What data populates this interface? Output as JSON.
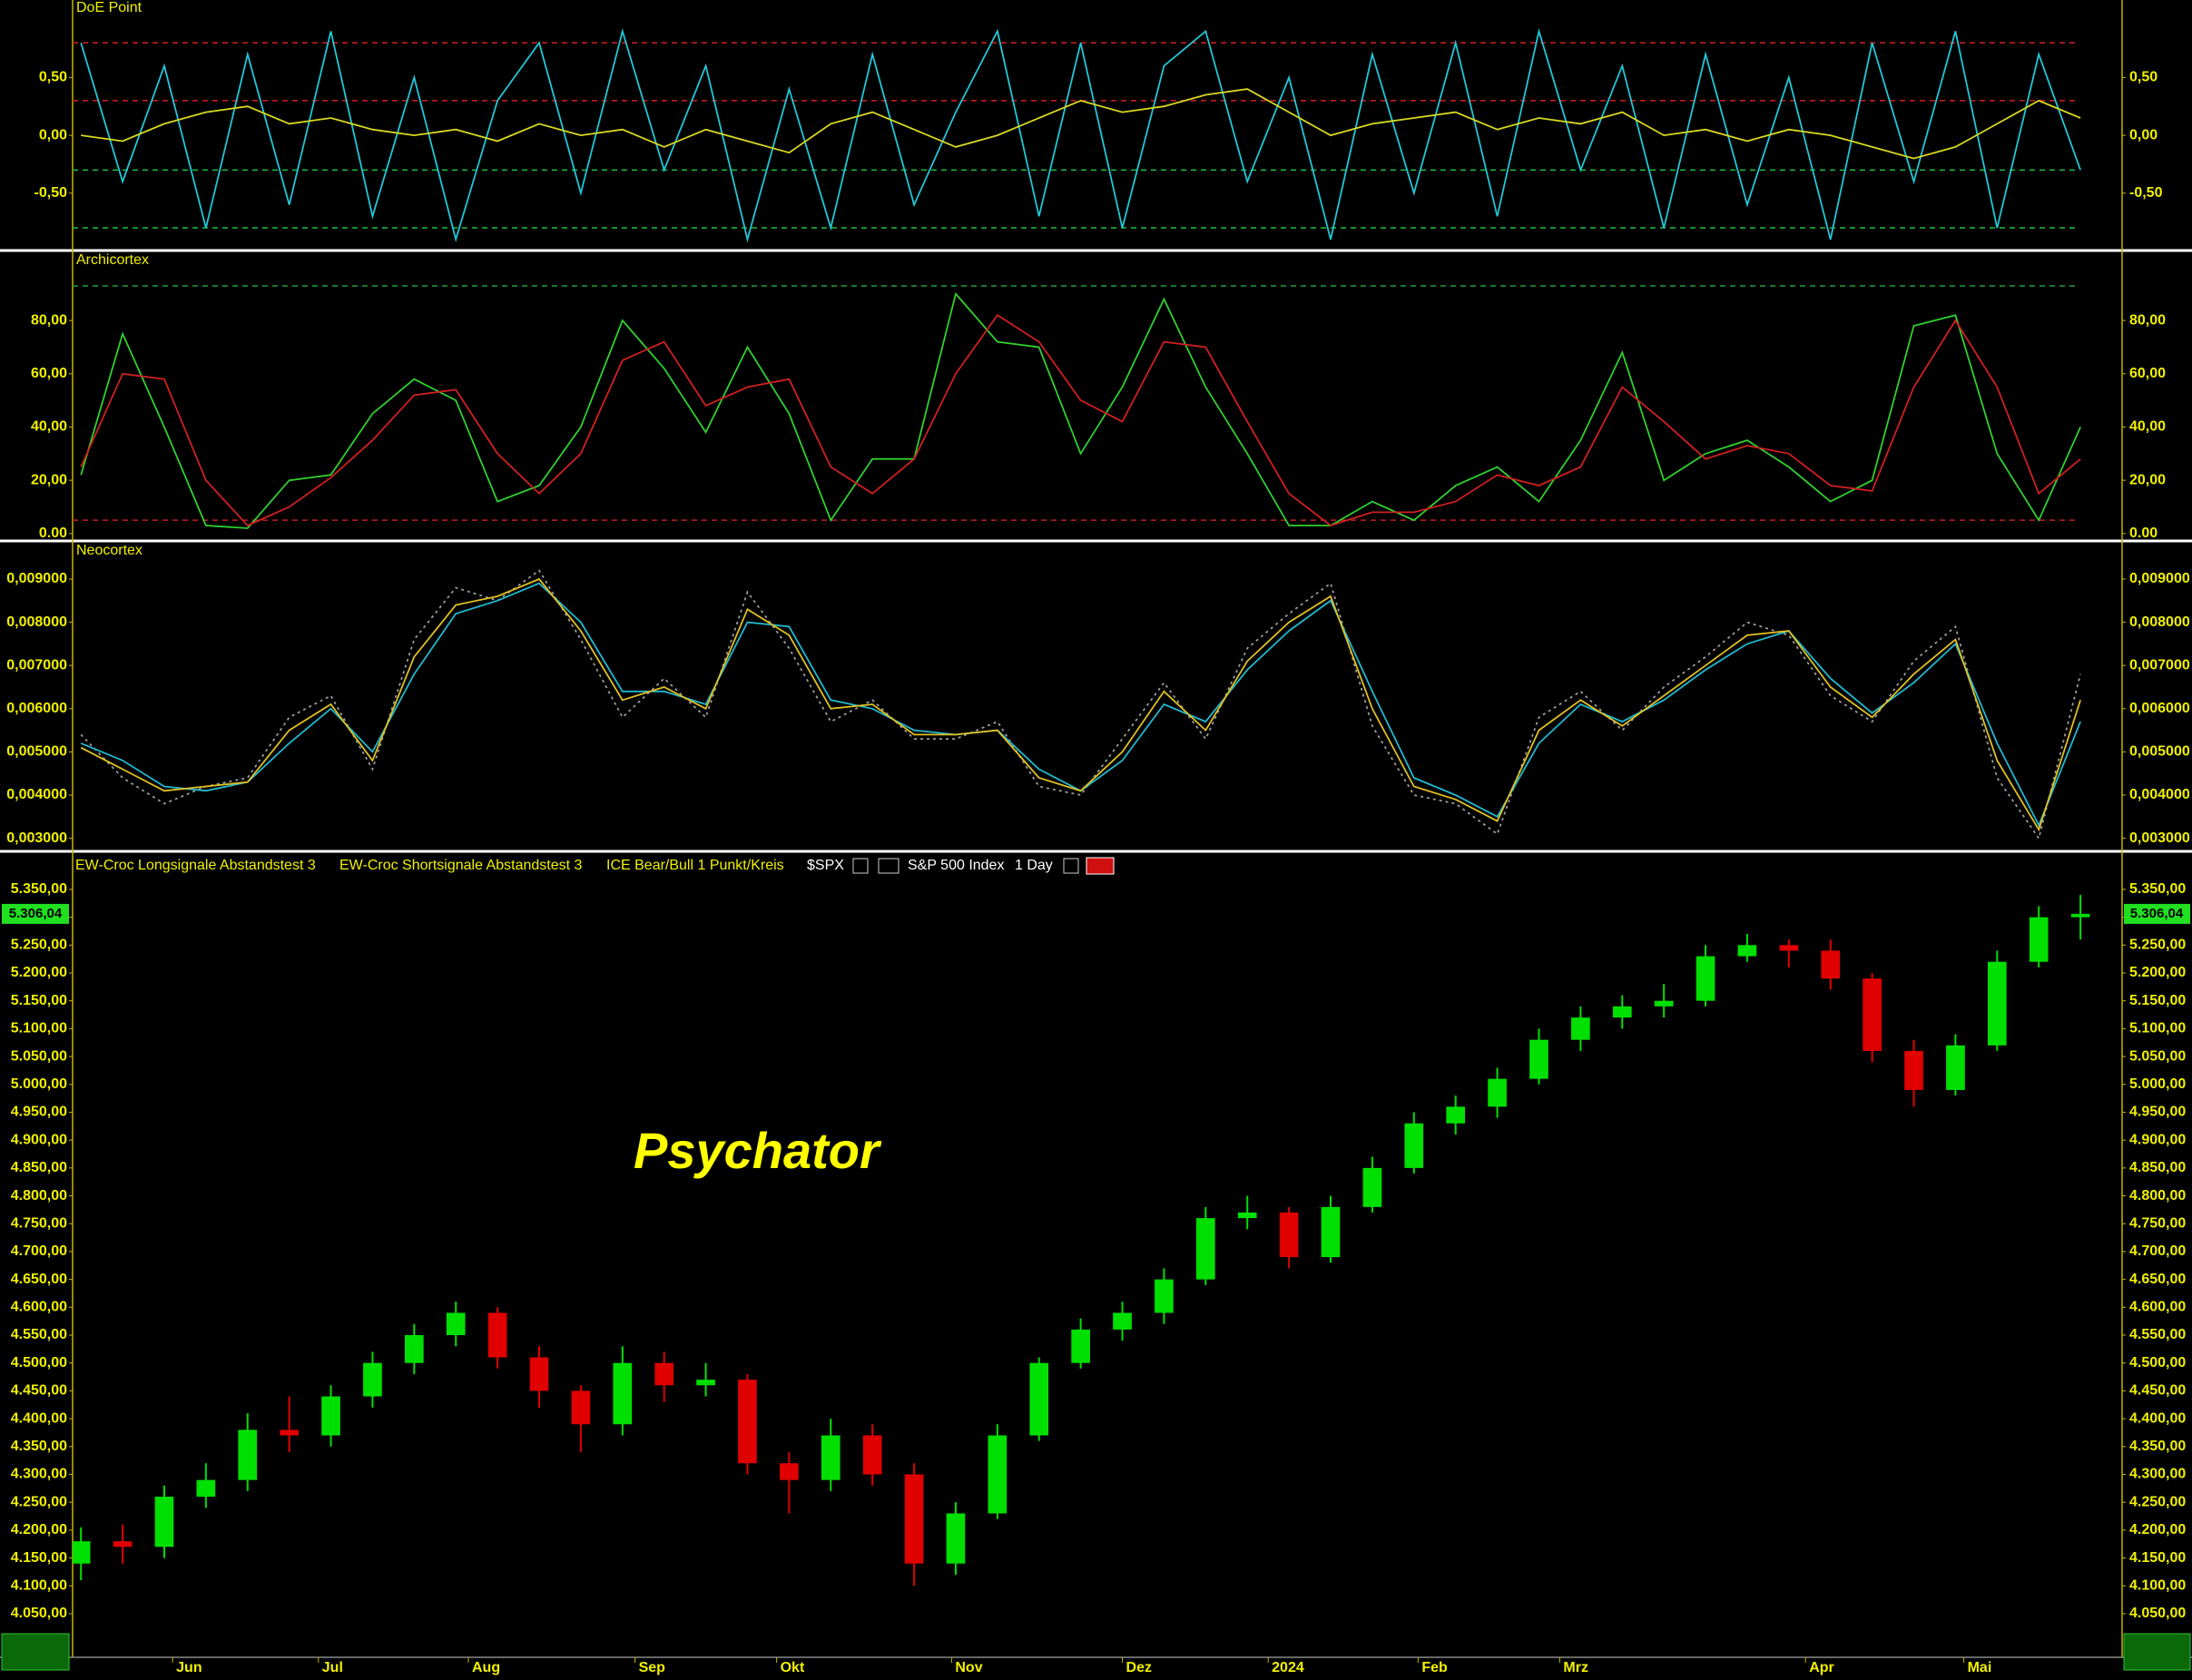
{
  "chart_data": [
    {
      "type": "line",
      "title": "DoE Point",
      "xlim": [
        -0.2,
        49
      ],
      "ylim": [
        -0.98,
        1.17
      ],
      "yticks": [
        {
          "value": 0.5,
          "label": "0,50"
        },
        {
          "value": 0,
          "label": "0,00"
        },
        {
          "value": -0.5,
          "label": "-0,50"
        }
      ],
      "hlines": [
        {
          "value": 0.8,
          "color": "#d02020"
        },
        {
          "value": 0.3,
          "color": "#d02020"
        },
        {
          "value": -0.3,
          "color": "#20c040"
        },
        {
          "value": -0.8,
          "color": "#20c040"
        }
      ],
      "series": [
        {
          "color": "#20c8d8",
          "values": [
            0.8,
            -0.4,
            0.6,
            -0.8,
            0.7,
            -0.6,
            0.9,
            -0.7,
            0.5,
            -0.9,
            0.3,
            0.8,
            -0.5,
            0.9,
            -0.3,
            0.6,
            -0.9,
            0.4,
            -0.8,
            0.7,
            -0.6,
            0.2,
            0.9,
            -0.7,
            0.8,
            -0.8,
            0.6,
            0.9,
            -0.4,
            0.5,
            -0.9,
            0.7,
            -0.5,
            0.8,
            -0.7,
            0.9,
            -0.3,
            0.6,
            -0.8,
            0.7,
            -0.6,
            0.5,
            -0.9,
            0.8,
            -0.4,
            0.9,
            -0.8,
            0.7,
            -0.3
          ]
        },
        {
          "color": "#d8d820",
          "values": [
            0,
            -0.05,
            0.1,
            0.2,
            0.25,
            0.1,
            0.15,
            0.05,
            0,
            0.05,
            -0.05,
            0.1,
            0,
            0.05,
            -0.1,
            0.05,
            -0.05,
            -0.15,
            0.1,
            0.2,
            0.05,
            -0.1,
            0,
            0.15,
            0.3,
            0.2,
            0.25,
            0.35,
            0.4,
            0.2,
            0,
            0.1,
            0.15,
            0.2,
            0.05,
            0.15,
            0.1,
            0.2,
            0,
            0.05,
            -0.05,
            0.05,
            0,
            -0.1,
            -0.2,
            -0.1,
            0.1,
            0.3,
            0.15
          ]
        }
      ]
    },
    {
      "type": "line",
      "title": "Archicortex",
      "xlim": [
        -0.2,
        49
      ],
      "ylim": [
        -2.1,
        105.6
      ],
      "yticks": [
        {
          "value": 80,
          "label": "80,00"
        },
        {
          "value": 60,
          "label": "60,00"
        },
        {
          "value": 40,
          "label": "40,00"
        },
        {
          "value": 20,
          "label": "20,00"
        },
        {
          "value": 0,
          "label": "0.00"
        }
      ],
      "hlines": [
        {
          "value": 93,
          "color": "#20a040"
        },
        {
          "value": 5,
          "color": "#c02020"
        }
      ],
      "series": [
        {
          "color": "#30d030",
          "values": [
            22,
            75,
            40,
            3,
            2,
            20,
            22,
            45,
            58,
            50,
            12,
            18,
            40,
            80,
            62,
            38,
            70,
            45,
            5,
            28,
            28,
            90,
            72,
            70,
            30,
            55,
            88,
            55,
            30,
            3,
            3,
            12,
            5,
            18,
            25,
            12,
            35,
            68,
            20,
            30,
            35,
            25,
            12,
            20,
            78,
            82,
            30,
            5,
            40
          ]
        },
        {
          "color": "#d02020",
          "values": [
            25,
            60,
            58,
            20,
            3,
            10,
            21,
            35,
            52,
            54,
            30,
            15,
            30,
            65,
            72,
            48,
            55,
            58,
            25,
            15,
            28,
            60,
            82,
            72,
            50,
            42,
            72,
            70,
            42,
            15,
            3,
            8,
            8,
            12,
            22,
            18,
            25,
            55,
            42,
            28,
            33,
            30,
            18,
            16,
            55,
            80,
            55,
            15,
            28
          ]
        }
      ]
    },
    {
      "type": "line",
      "title": "Neocortex",
      "xlim": [
        -0.2,
        49
      ],
      "ylim": [
        0.00274,
        0.00984
      ],
      "yticks": [
        {
          "value": 0.009,
          "label": "0,009000"
        },
        {
          "value": 0.008,
          "label": "0,008000"
        },
        {
          "value": 0.007,
          "label": "0,007000"
        },
        {
          "value": 0.006,
          "label": "0,006000"
        },
        {
          "value": 0.005,
          "label": "0,005000"
        },
        {
          "value": 0.004,
          "label": "0,004000"
        },
        {
          "value": 0.003,
          "label": "0,003000"
        }
      ],
      "series": [
        {
          "color": "#9a9a9a",
          "dashed": true,
          "values": [
            0.0054,
            0.0044,
            0.0038,
            0.0042,
            0.0044,
            0.0058,
            0.0063,
            0.0046,
            0.0076,
            0.0088,
            0.0085,
            0.0092,
            0.0076,
            0.0058,
            0.0067,
            0.0058,
            0.0087,
            0.0074,
            0.0057,
            0.0062,
            0.0053,
            0.0053,
            0.0057,
            0.0042,
            0.004,
            0.0053,
            0.0066,
            0.0053,
            0.0074,
            0.0082,
            0.0089,
            0.0056,
            0.004,
            0.0038,
            0.0031,
            0.0058,
            0.0064,
            0.0055,
            0.0065,
            0.0072,
            0.008,
            0.0077,
            0.0063,
            0.0057,
            0.0071,
            0.0079,
            0.0044,
            0.003,
            0.0068
          ]
        },
        {
          "color": "#20b8d0",
          "values": [
            0.0052,
            0.0048,
            0.0042,
            0.0041,
            0.0043,
            0.0052,
            0.006,
            0.005,
            0.0068,
            0.0082,
            0.0085,
            0.0089,
            0.008,
            0.0064,
            0.0064,
            0.0061,
            0.008,
            0.0079,
            0.0062,
            0.006,
            0.0055,
            0.0054,
            0.0055,
            0.0046,
            0.0041,
            0.0048,
            0.0061,
            0.0057,
            0.0069,
            0.0078,
            0.0085,
            0.0064,
            0.0044,
            0.004,
            0.0035,
            0.0052,
            0.0061,
            0.0057,
            0.0062,
            0.0069,
            0.0075,
            0.0078,
            0.0067,
            0.0059,
            0.0066,
            0.0075,
            0.0052,
            0.0033,
            0.0057
          ]
        },
        {
          "color": "#e0c020",
          "values": [
            0.0051,
            0.0046,
            0.0041,
            0.0042,
            0.0043,
            0.0055,
            0.0061,
            0.0048,
            0.0072,
            0.0084,
            0.0086,
            0.009,
            0.0078,
            0.0062,
            0.0065,
            0.006,
            0.0083,
            0.0077,
            0.006,
            0.0061,
            0.0054,
            0.0054,
            0.0055,
            0.0044,
            0.0041,
            0.005,
            0.0064,
            0.0055,
            0.0071,
            0.008,
            0.0086,
            0.006,
            0.0042,
            0.0039,
            0.0034,
            0.0055,
            0.0062,
            0.0056,
            0.0063,
            0.007,
            0.0077,
            0.0078,
            0.0065,
            0.0058,
            0.0068,
            0.0076,
            0.0048,
            0.0032,
            0.0062
          ]
        }
      ]
    },
    {
      "type": "candlestick",
      "legend": [
        "EW-Croc Longsignale Abstandstest 3",
        "EW-Croc Shortsignale Abstandstest 3",
        "ICE Bear/Bull 1 Punkt/Kreis"
      ],
      "symbol": "$SPX",
      "instrument": "S&P 500 Index",
      "interval": "1 Day",
      "annotation": "Psychator",
      "last_value": 5306.04,
      "last_value_label": "5.306,04",
      "up_color": "#00e000",
      "down_color": "#e00000",
      "xlim": [
        -0.2,
        49
      ],
      "ylim": [
        3975,
        5415
      ],
      "xticks": [
        {
          "value": 2.2,
          "label": "Jun"
        },
        {
          "value": 5.7,
          "label": "Jul"
        },
        {
          "value": 9.3,
          "label": "Aug"
        },
        {
          "value": 13.3,
          "label": "Sep"
        },
        {
          "value": 16.7,
          "label": "Okt"
        },
        {
          "value": 20.9,
          "label": "Nov"
        },
        {
          "value": 25,
          "label": "Dez"
        },
        {
          "value": 28.5,
          "label": "2024"
        },
        {
          "value": 32.1,
          "label": "Feb"
        },
        {
          "value": 35.5,
          "label": "Mrz"
        },
        {
          "value": 41.4,
          "label": "Apr"
        },
        {
          "value": 45.2,
          "label": "Mai"
        }
      ],
      "yticks": [
        {
          "value": 5350,
          "label": "5.350,00"
        },
        {
          "value": 5300,
          "label": "5.300,00"
        },
        {
          "value": 5250,
          "label": "5.250,00"
        },
        {
          "value": 5200,
          "label": "5.200,00"
        },
        {
          "value": 5150,
          "label": "5.150,00"
        },
        {
          "value": 5100,
          "label": "5.100,00"
        },
        {
          "value": 5050,
          "label": "5.050,00"
        },
        {
          "value": 5000,
          "label": "5.000,00"
        },
        {
          "value": 4950,
          "label": "4.950,00"
        },
        {
          "value": 4900,
          "label": "4.900,00"
        },
        {
          "value": 4850,
          "label": "4.850,00"
        },
        {
          "value": 4800,
          "label": "4.800,00"
        },
        {
          "value": 4750,
          "label": "4.750,00"
        },
        {
          "value": 4700,
          "label": "4.700,00"
        },
        {
          "value": 4650,
          "label": "4.650,00"
        },
        {
          "value": 4600,
          "label": "4.600,00"
        },
        {
          "value": 4550,
          "label": "4.550,00"
        },
        {
          "value": 4500,
          "label": "4.500,00"
        },
        {
          "value": 4450,
          "label": "4.450,00"
        },
        {
          "value": 4400,
          "label": "4.400,00"
        },
        {
          "value": 4350,
          "label": "4.350,00"
        },
        {
          "value": 4300,
          "label": "4.300,00"
        },
        {
          "value": 4250,
          "label": "4.250,00"
        },
        {
          "value": 4200,
          "label": "4.200,00"
        },
        {
          "value": 4150,
          "label": "4.150,00"
        },
        {
          "value": 4100,
          "label": "4.100,00"
        },
        {
          "value": 4050,
          "label": "4.050,00"
        }
      ],
      "open": [
        4140,
        4180,
        4170,
        4260,
        4290,
        4380,
        4370,
        4440,
        4500,
        4550,
        4590,
        4510,
        4450,
        4390,
        4500,
        4460,
        4470,
        4320,
        4290,
        4370,
        4300,
        4140,
        4230,
        4370,
        4500,
        4560,
        4590,
        4650,
        4760,
        4770,
        4690,
        4780,
        4850,
        4930,
        4960,
        5010,
        5080,
        5120,
        5140,
        5150,
        5230,
        5250,
        5240,
        5190,
        5060,
        4990,
        5070,
        5220,
        5300
      ],
      "high": [
        4205,
        4210,
        4280,
        4320,
        4410,
        4440,
        4460,
        4520,
        4570,
        4610,
        4600,
        4530,
        4460,
        4530,
        4520,
        4500,
        4480,
        4340,
        4400,
        4390,
        4320,
        4250,
        4390,
        4510,
        4580,
        4610,
        4670,
        4780,
        4800,
        4780,
        4800,
        4870,
        4950,
        4980,
        5030,
        5100,
        5140,
        5160,
        5180,
        5250,
        5270,
        5260,
        5260,
        5200,
        5080,
        5090,
        5240,
        5320,
        5340
      ],
      "low": [
        4110,
        4140,
        4150,
        4240,
        4270,
        4340,
        4350,
        4420,
        4480,
        4530,
        4490,
        4420,
        4340,
        4370,
        4430,
        4440,
        4300,
        4230,
        4270,
        4280,
        4100,
        4120,
        4220,
        4360,
        4490,
        4540,
        4570,
        4640,
        4740,
        4670,
        4680,
        4770,
        4840,
        4910,
        4940,
        5000,
        5060,
        5100,
        5120,
        5140,
        5220,
        5210,
        5170,
        5040,
        4960,
        4980,
        5060,
        5210,
        5260
      ],
      "close": [
        4180,
        4170,
        4260,
        4290,
        4380,
        4370,
        4440,
        4500,
        4550,
        4590,
        4510,
        4450,
        4390,
        4500,
        4460,
        4470,
        4320,
        4290,
        4370,
        4300,
        4140,
        4230,
        4370,
        4500,
        4560,
        4590,
        4650,
        4760,
        4770,
        4690,
        4780,
        4850,
        4930,
        4960,
        5010,
        5080,
        5120,
        5140,
        5150,
        5230,
        5250,
        5240,
        5190,
        5060,
        4990,
        5070,
        5220,
        5300,
        5306.04
      ]
    }
  ]
}
